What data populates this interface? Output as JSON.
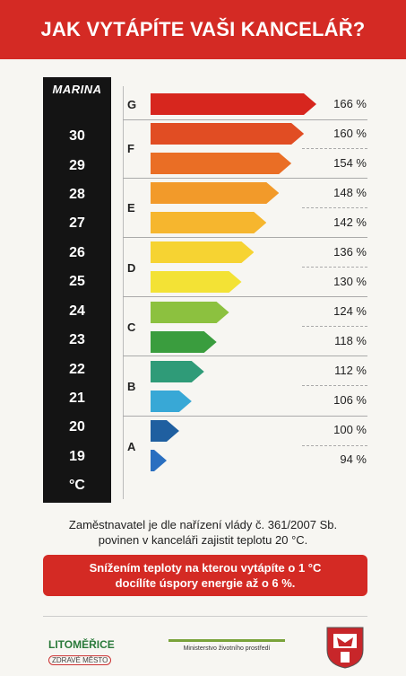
{
  "header": {
    "title": "JAK VYTÁPÍTE VAŠI KANCELÁŘ?"
  },
  "thermometer": {
    "brand": "MARINA",
    "temps": [
      "30",
      "29",
      "28",
      "27",
      "26",
      "25",
      "24",
      "23",
      "22",
      "21",
      "20",
      "19"
    ],
    "unit": "°C"
  },
  "grades": [
    "G",
    "F",
    "E",
    "D",
    "C",
    "B",
    "A"
  ],
  "levels": [
    {
      "pct": "166 %",
      "value": 166,
      "color": "#d7261e"
    },
    {
      "pct": "160 %",
      "value": 160,
      "color": "#e14d23"
    },
    {
      "pct": "154 %",
      "value": 154,
      "color": "#ea6e25"
    },
    {
      "pct": "148 %",
      "value": 148,
      "color": "#f29a2a"
    },
    {
      "pct": "142 %",
      "value": 142,
      "color": "#f6b62e"
    },
    {
      "pct": "136 %",
      "value": 136,
      "color": "#f6d332"
    },
    {
      "pct": "130 %",
      "value": 130,
      "color": "#f3e235"
    },
    {
      "pct": "124 %",
      "value": 124,
      "color": "#8cc13f"
    },
    {
      "pct": "118 %",
      "value": 118,
      "color": "#3a9d3e"
    },
    {
      "pct": "112 %",
      "value": 112,
      "color": "#2f9b78"
    },
    {
      "pct": "106 %",
      "value": 106,
      "color": "#38a8d6"
    },
    {
      "pct": "100 %",
      "value": 100,
      "color": "#1f5fa0"
    },
    {
      "pct": "94 %",
      "value": 94,
      "color": "#2a6fc0"
    }
  ],
  "note": {
    "line1": "Zaměstnavatel je dle nařízení vlády č. 361/2007 Sb.",
    "line2": "povinen v kanceláři zajistit teplotu 20 °C."
  },
  "alert": {
    "line1": "Snížením teploty na kterou vytápíte o 1 °C",
    "line2": "docílíte úspory energie až o 6 %."
  },
  "footer": {
    "city_name": "LITOMĚŘICE",
    "city_tag": "ZDRAVÉ MĚSTO",
    "ministry": "Ministerstvo životního prostředí"
  }
}
